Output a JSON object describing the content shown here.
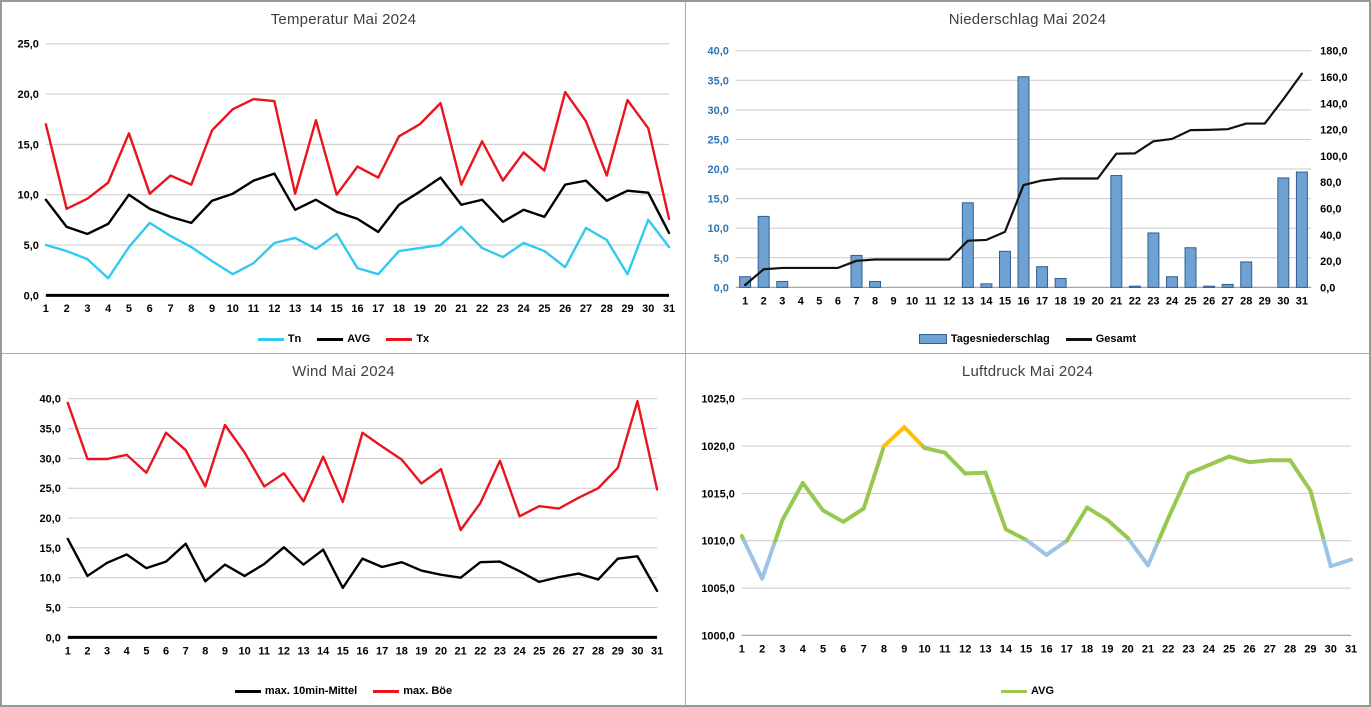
{
  "page": {
    "background": "#ffffff",
    "frame_color": "#999999",
    "divider_color": "#ababab"
  },
  "chart_data": [
    {
      "id": "temperatur",
      "type": "line",
      "title": "Temperatur Mai 2024",
      "categories": [
        1,
        2,
        3,
        4,
        5,
        6,
        7,
        8,
        9,
        10,
        11,
        12,
        13,
        14,
        15,
        16,
        17,
        18,
        19,
        20,
        21,
        22,
        23,
        24,
        25,
        26,
        27,
        28,
        29,
        30,
        31
      ],
      "y_left": {
        "min": 0,
        "max": 25,
        "step": 5,
        "label_color": "#000000"
      },
      "grid": true,
      "legend_position": "bottom",
      "series": [
        {
          "name": "Tn",
          "type": "line",
          "color": "#30C9F2",
          "width": 2.4,
          "values": [
            5.0,
            4.4,
            3.6,
            1.7,
            4.8,
            7.2,
            5.9,
            4.8,
            3.4,
            2.1,
            3.2,
            5.2,
            5.7,
            4.6,
            6.1,
            2.7,
            2.1,
            4.4,
            4.7,
            5.0,
            6.8,
            4.7,
            3.8,
            5.2,
            4.4,
            2.8,
            6.7,
            5.5,
            2.1,
            7.5,
            4.8
          ]
        },
        {
          "name": "AVG",
          "type": "line",
          "color": "#000000",
          "width": 2.4,
          "values": [
            9.5,
            6.8,
            6.1,
            7.1,
            10.0,
            8.6,
            7.8,
            7.2,
            9.4,
            10.1,
            11.4,
            12.1,
            8.5,
            9.5,
            8.3,
            7.6,
            6.3,
            9.0,
            10.3,
            11.7,
            9.0,
            9.5,
            7.3,
            8.5,
            7.8,
            11.0,
            11.4,
            9.4,
            10.4,
            10.2,
            6.2
          ]
        },
        {
          "name": "Tx",
          "type": "line",
          "color": "#E9141D",
          "width": 2.4,
          "values": [
            17.0,
            8.6,
            9.6,
            11.2,
            16.1,
            10.1,
            11.9,
            11.0,
            16.4,
            18.5,
            19.5,
            19.3,
            10.1,
            17.4,
            10.0,
            12.8,
            11.7,
            15.8,
            17.0,
            19.1,
            11.0,
            15.3,
            11.4,
            14.2,
            12.4,
            20.2,
            17.3,
            11.9,
            19.4,
            16.6,
            7.6
          ]
        }
      ]
    },
    {
      "id": "niederschlag",
      "type": "bar",
      "title": "Niederschlag Mai 2024",
      "categories": [
        1,
        2,
        3,
        4,
        5,
        6,
        7,
        8,
        9,
        10,
        11,
        12,
        13,
        14,
        15,
        16,
        17,
        18,
        19,
        20,
        21,
        22,
        23,
        24,
        25,
        26,
        27,
        28,
        29,
        30,
        31
      ],
      "y_left": {
        "min": 0,
        "max": 40,
        "step": 5,
        "label_color": "#2E75B6"
      },
      "y_right": {
        "min": 0,
        "max": 180,
        "step": 20,
        "label_color": "#000000"
      },
      "grid": true,
      "legend_position": "bottom",
      "series": [
        {
          "name": "Tagesniederschlag",
          "type": "bar",
          "axis": "left",
          "fill": "#6FA1D2",
          "stroke": "#2E5F8F",
          "values": [
            1.8,
            12.0,
            1.0,
            0,
            0,
            0,
            5.4,
            1.0,
            0,
            0,
            0,
            0,
            14.3,
            0.6,
            6.1,
            35.6,
            3.5,
            1.5,
            0,
            0,
            18.9,
            0.2,
            9.2,
            1.8,
            6.7,
            0.2,
            0.5,
            4.3,
            0,
            18.5,
            19.5
          ]
        },
        {
          "name": "Gesamt",
          "type": "line",
          "axis": "right",
          "color": "#111111",
          "width": 2.2,
          "values": [
            1.8,
            13.8,
            14.8,
            14.8,
            14.8,
            14.8,
            20.2,
            21.2,
            21.2,
            21.2,
            21.2,
            21.2,
            35.5,
            36.1,
            42.2,
            77.8,
            81.3,
            82.8,
            82.8,
            82.8,
            101.7,
            101.9,
            111.1,
            112.9,
            119.6,
            119.8,
            120.3,
            124.6,
            124.6,
            143.1,
            162.6
          ]
        }
      ]
    },
    {
      "id": "wind",
      "type": "line",
      "title": "Wind Mai 2024",
      "categories": [
        1,
        2,
        3,
        4,
        5,
        6,
        7,
        8,
        9,
        10,
        11,
        12,
        13,
        14,
        15,
        16,
        17,
        18,
        19,
        20,
        21,
        22,
        23,
        24,
        25,
        26,
        27,
        28,
        29,
        30,
        31
      ],
      "y_left": {
        "min": 0,
        "max": 40,
        "step": 5,
        "label_color": "#000000"
      },
      "grid": true,
      "legend_position": "bottom",
      "series": [
        {
          "name": "max. 10min-Mittel",
          "type": "line",
          "color": "#000000",
          "width": 2.4,
          "values": [
            16.5,
            10.3,
            12.5,
            13.9,
            11.6,
            12.7,
            15.7,
            9.4,
            12.2,
            10.3,
            12.3,
            15.1,
            12.2,
            14.7,
            8.3,
            13.2,
            11.8,
            12.6,
            11.2,
            10.5,
            10.0,
            12.6,
            12.7,
            11.1,
            9.3,
            10.1,
            10.7,
            9.7,
            13.2,
            13.6,
            7.8
          ]
        },
        {
          "name": "max. Böe",
          "type": "line",
          "color": "#E9141D",
          "width": 2.4,
          "values": [
            39.3,
            29.9,
            29.9,
            30.6,
            27.6,
            34.3,
            31.4,
            25.3,
            35.6,
            31.0,
            25.3,
            27.5,
            22.8,
            30.3,
            22.7,
            34.3,
            32.0,
            29.8,
            25.8,
            28.2,
            18.0,
            22.5,
            29.6,
            20.3,
            22.0,
            21.6,
            23.4,
            25.0,
            28.4,
            39.6,
            24.8
          ]
        }
      ]
    },
    {
      "id": "luftdruck",
      "type": "line",
      "title": "Luftdruck Mai 2024",
      "categories": [
        1,
        2,
        3,
        4,
        5,
        6,
        7,
        8,
        9,
        10,
        11,
        12,
        13,
        14,
        15,
        16,
        17,
        18,
        19,
        20,
        21,
        22,
        23,
        24,
        25,
        26,
        27,
        28,
        29,
        30,
        31
      ],
      "y_left": {
        "min": 1000,
        "max": 1025,
        "step": 5,
        "label_color": "#000000"
      },
      "grid": true,
      "legend_position": "bottom",
      "series": [
        {
          "name": "AVG",
          "type": "line",
          "color": "#99C851",
          "width": 4,
          "thresholds": {
            "low": 1010,
            "low_color": "#9DC3E6",
            "high": 1020,
            "high_color": "#FFC000"
          },
          "values": [
            1010.5,
            1006.0,
            1012.2,
            1016.1,
            1013.2,
            1012.0,
            1013.4,
            1020.0,
            1022.0,
            1019.8,
            1019.3,
            1017.1,
            1017.2,
            1011.2,
            1010.1,
            1008.5,
            1010.0,
            1013.5,
            1012.2,
            1010.3,
            1007.4,
            1012.4,
            1017.1,
            1018.0,
            1018.9,
            1018.3,
            1018.5,
            1018.5,
            1015.3,
            1007.3,
            1008.0
          ]
        }
      ]
    }
  ]
}
